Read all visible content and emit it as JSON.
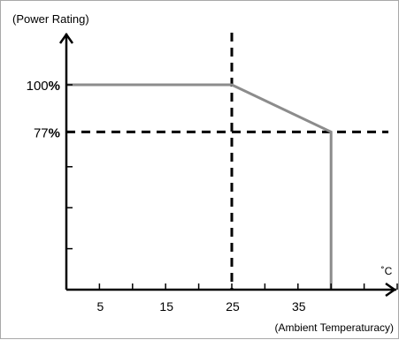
{
  "chart_data": {
    "type": "line",
    "ylabel": "(Power Rating)",
    "xlabel": "(Ambient Temperaturacy)",
    "x_unit": "˚C",
    "ylim": [
      0,
      130
    ],
    "xlim": [
      0,
      52
    ],
    "x_ticks": [
      5,
      15,
      25,
      35
    ],
    "x_tick_marks": [
      0,
      5,
      10,
      15,
      20,
      25,
      30,
      35,
      40,
      45,
      50
    ],
    "y_ticks": [
      {
        "value": 100,
        "num": "100",
        "pct": "%"
      },
      {
        "value": 77,
        "num": "77",
        "pct": "%"
      }
    ],
    "y_tick_marks": [
      20,
      40,
      60,
      77,
      100
    ],
    "series": [
      {
        "color": "#8c8c8c",
        "points": [
          [
            0,
            100
          ],
          [
            25,
            100
          ],
          [
            40,
            77
          ],
          [
            40,
            0
          ]
        ]
      }
    ],
    "reference_lines": [
      {
        "orientation": "vertical",
        "value": 25,
        "style": "dashed",
        "color": "#000000"
      },
      {
        "orientation": "horizontal",
        "value": 77,
        "style": "dashed",
        "color": "#000000"
      }
    ],
    "grid": false
  }
}
